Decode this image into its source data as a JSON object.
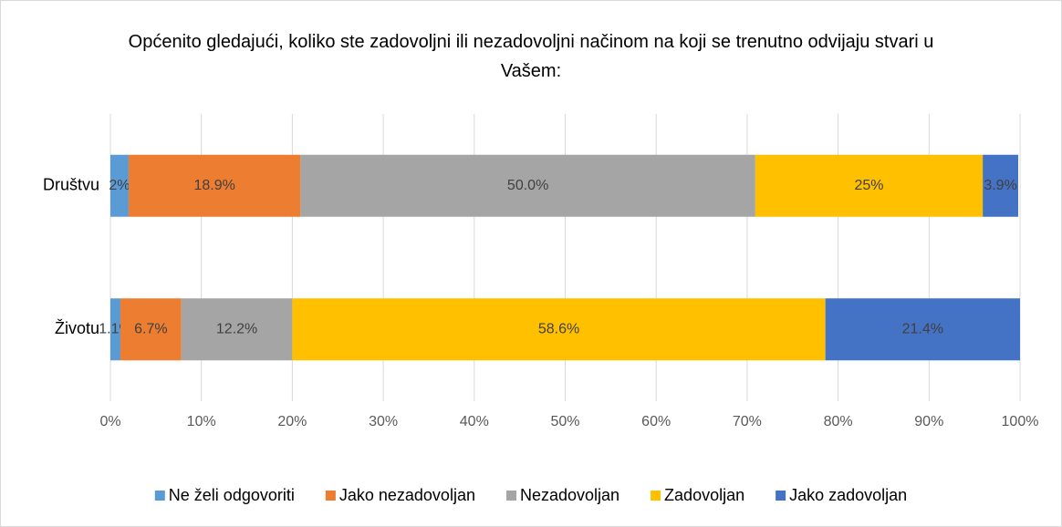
{
  "chart_data": {
    "type": "stacked_barh",
    "title": "Općenito gledajući, koliko ste zadovoljni ili nezadovoljni načinom na koji se trenutno odvijaju stvari u Vašem:",
    "categories": [
      "Društvu",
      "Životu"
    ],
    "series": [
      {
        "name": "Ne želi odgovoriti",
        "color": "#5b9bd5",
        "values": [
          2,
          1.1
        ],
        "value_labels": [
          "2%",
          "1.1%"
        ]
      },
      {
        "name": "Jako nezadovoljan",
        "color": "#ed7d31",
        "values": [
          18.9,
          6.7
        ],
        "value_labels": [
          "18.9%",
          "6.7%"
        ]
      },
      {
        "name": "Nezadovoljan",
        "color": "#a5a5a5",
        "values": [
          50,
          12.2
        ],
        "value_labels": [
          "50.0%",
          "12.2%"
        ]
      },
      {
        "name": "Zadovoljan",
        "color": "#ffc000",
        "values": [
          25,
          58.6
        ],
        "value_labels": [
          "25%",
          "58.6%"
        ]
      },
      {
        "name": "Jako zadovoljan",
        "color": "#4472c4",
        "values": [
          3.9,
          21.4
        ],
        "value_labels": [
          "3.9%",
          "21.4%"
        ]
      }
    ],
    "xlim": [
      0,
      100
    ],
    "xticks": [
      {
        "value": 0,
        "label": "0%"
      },
      {
        "value": 10,
        "label": "10%"
      },
      {
        "value": 20,
        "label": "20%"
      },
      {
        "value": 30,
        "label": "30%"
      },
      {
        "value": 40,
        "label": "40%"
      },
      {
        "value": 50,
        "label": "50%"
      },
      {
        "value": 60,
        "label": "60%"
      },
      {
        "value": 70,
        "label": "70%"
      },
      {
        "value": 80,
        "label": "80%"
      },
      {
        "value": 90,
        "label": "90%"
      },
      {
        "value": 100,
        "label": "100%"
      }
    ],
    "grid": true,
    "legend": "bottom"
  }
}
